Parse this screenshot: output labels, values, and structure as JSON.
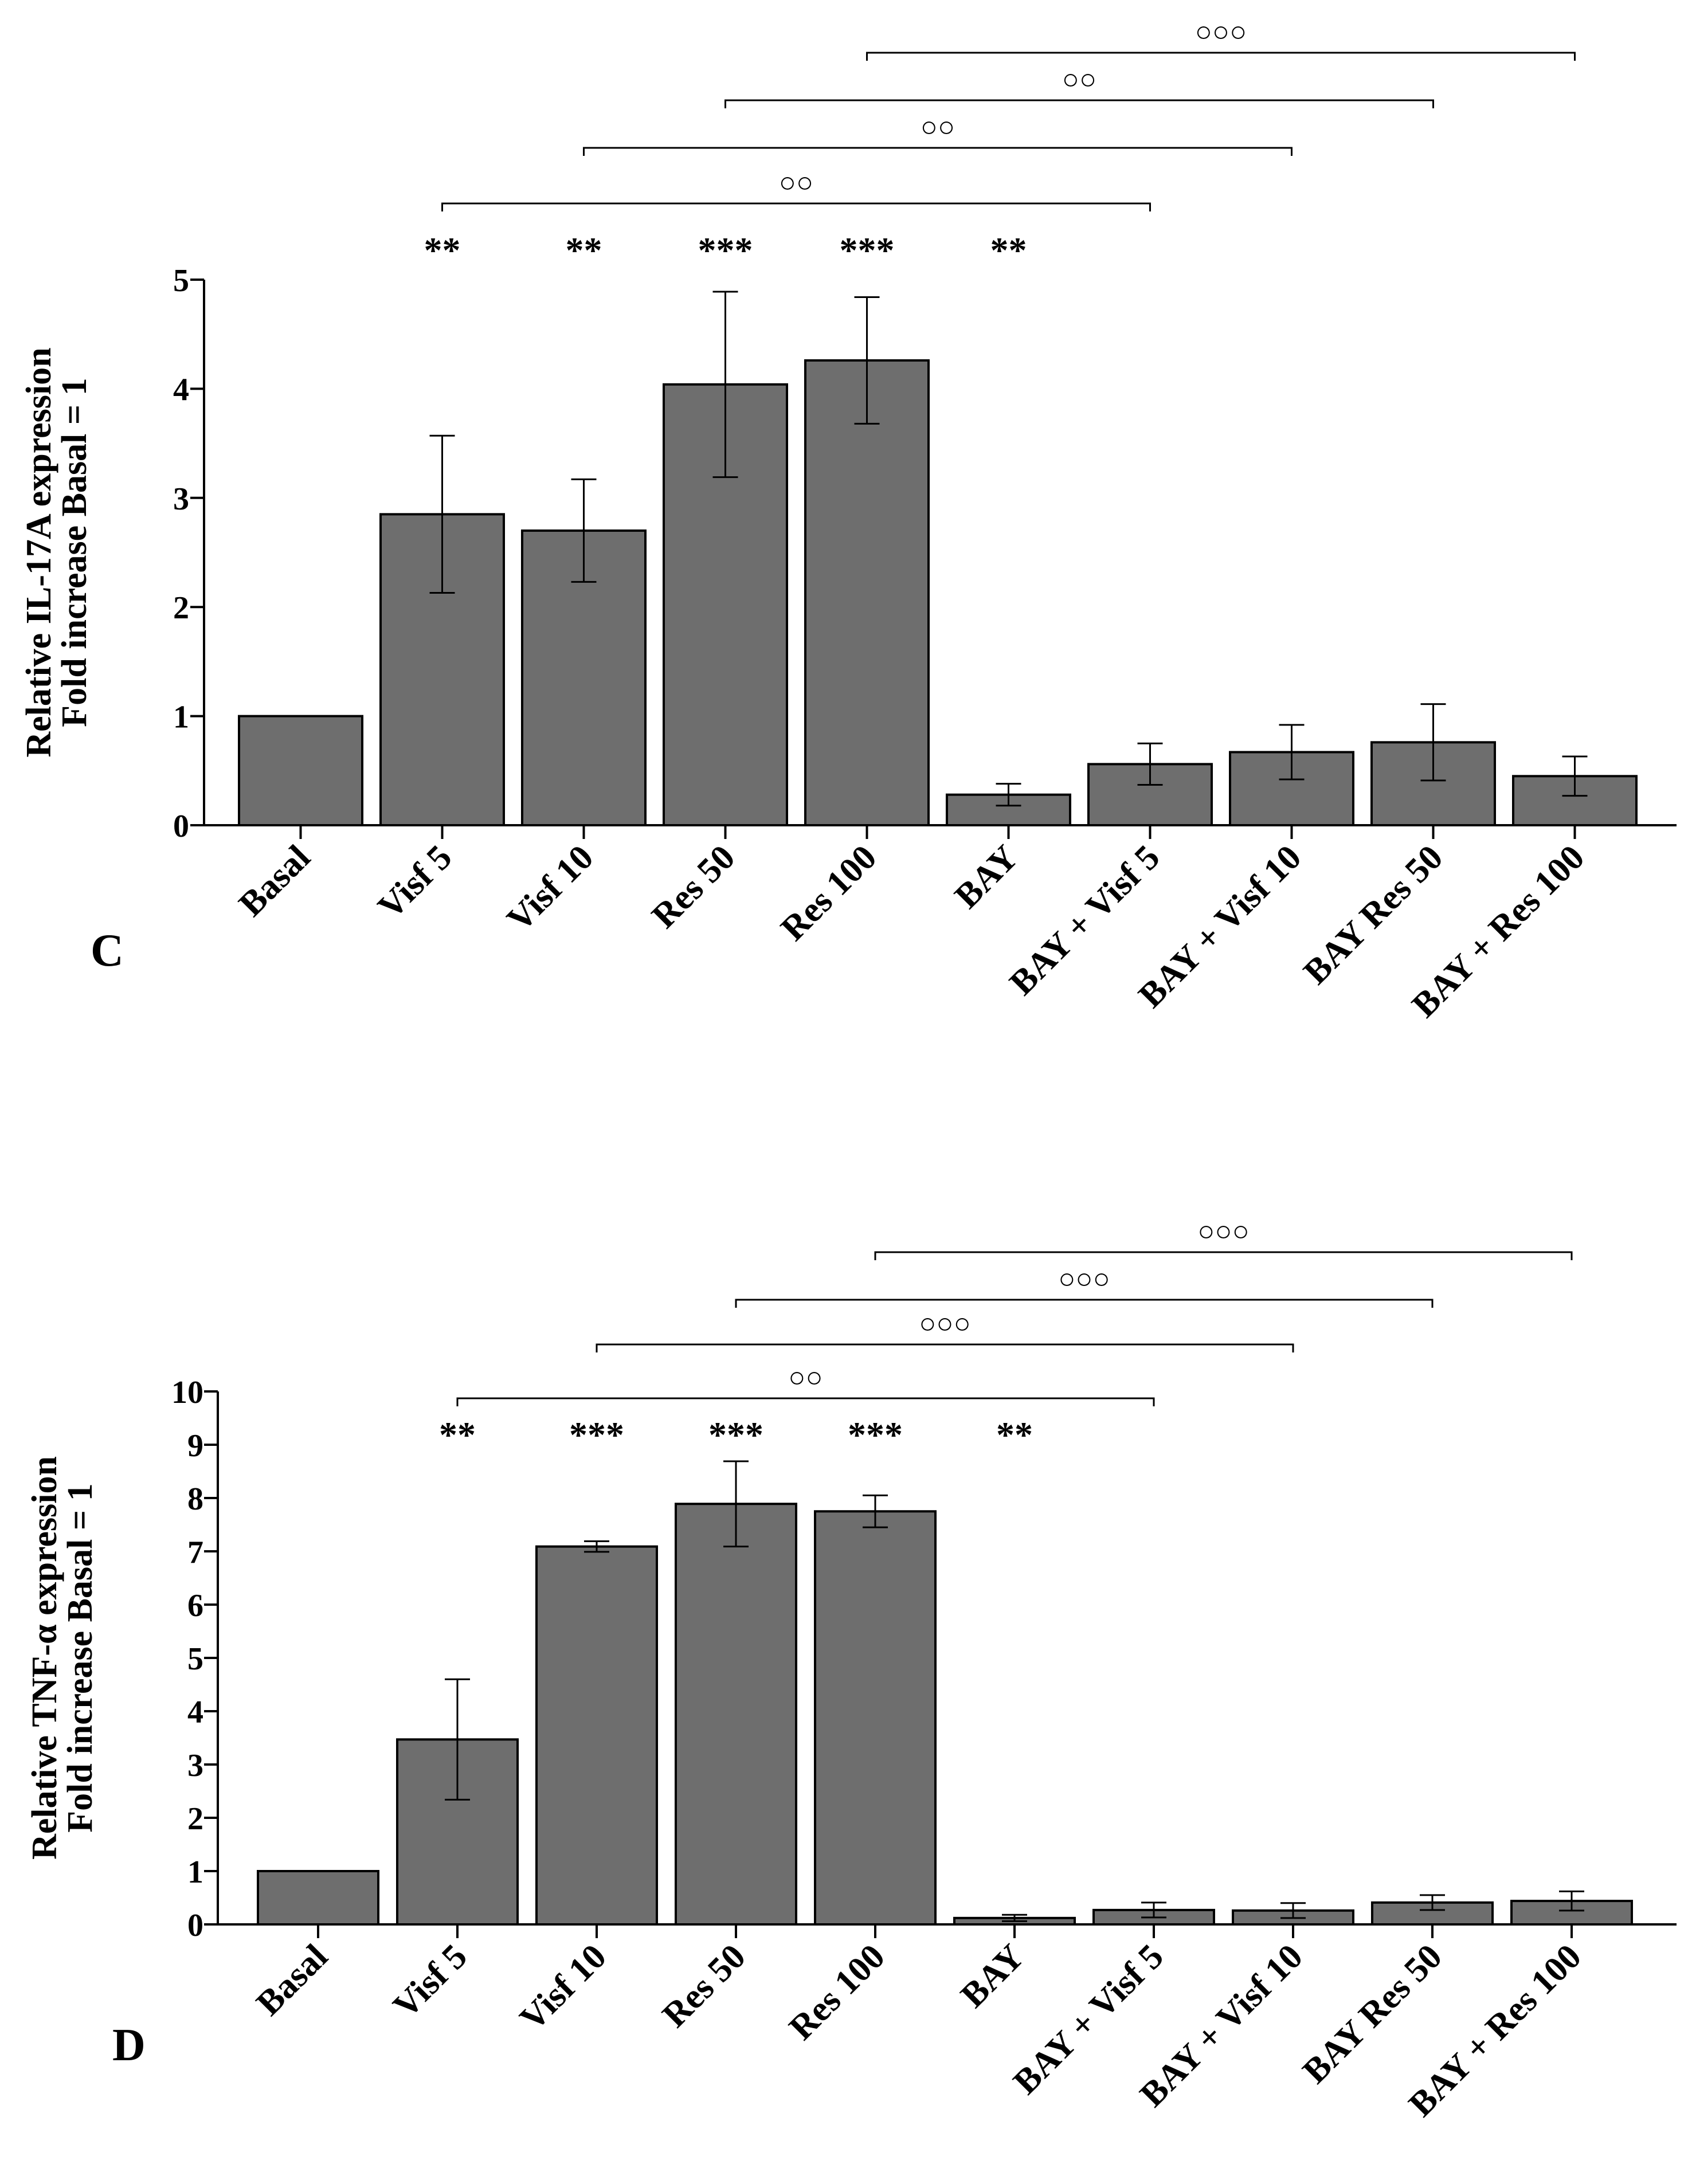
{
  "chart_data": [
    {
      "type": "bar",
      "panel": "C",
      "categories": [
        "Basal",
        "Visf 5",
        "Visf 10",
        "Res 50",
        "Res 100",
        "BAY",
        "BAY + Visf 5",
        "BAY + Visf 10",
        "BAY Res 50",
        "BAY + Res 100"
      ],
      "values": [
        1.0,
        2.85,
        2.7,
        4.04,
        4.26,
        0.28,
        0.56,
        0.67,
        0.76,
        0.45
      ],
      "errors": [
        0,
        0.72,
        0.47,
        0.85,
        0.58,
        0.1,
        0.19,
        0.25,
        0.35,
        0.18
      ],
      "ylabel_lines": [
        "Relative IL-17A expression",
        "Fold increase Basal = 1"
      ],
      "ylim": [
        0,
        5
      ],
      "yticks": [
        "0",
        "1",
        "2",
        "3",
        "4",
        "5"
      ],
      "significance": [
        "",
        "**",
        "**",
        "***",
        "***",
        "**",
        "",
        "",
        "",
        ""
      ],
      "comparisons": [
        {
          "from": "Visf 5",
          "to": "BAY + Visf 5",
          "label": "○○"
        },
        {
          "from": "Visf 10",
          "to": "BAY + Visf 10",
          "label": "○○"
        },
        {
          "from": "Res 50",
          "to": "BAY Res 50",
          "label": "○○"
        },
        {
          "from": "Res 100",
          "to": "BAY + Res 100",
          "label": "○○○"
        }
      ],
      "colors": {
        "bar": "#6e6e6e",
        "stroke": "#000000"
      }
    },
    {
      "type": "bar",
      "panel": "D",
      "categories": [
        "Basal",
        "Visf 5",
        "Visf 10",
        "Res 50",
        "Res 100",
        "BAY",
        "BAY + Visf 5",
        "BAY + Visf 10",
        "BAY Res 50",
        "BAY + Res 100"
      ],
      "values": [
        1.0,
        3.47,
        7.09,
        7.89,
        7.75,
        0.12,
        0.27,
        0.26,
        0.41,
        0.44
      ],
      "errors": [
        0,
        1.13,
        0.1,
        0.8,
        0.3,
        0.06,
        0.14,
        0.14,
        0.14,
        0.18
      ],
      "ylabel_lines": [
        "Relative TNF-α expression",
        "Fold increase Basal = 1"
      ],
      "ylim": [
        0,
        10
      ],
      "yticks": [
        "0",
        "1",
        "2",
        "3",
        "4",
        "5",
        "6",
        "7",
        "8",
        "9",
        "10"
      ],
      "significance": [
        "",
        "**",
        "***",
        "***",
        "***",
        "**",
        "",
        "",
        "",
        ""
      ],
      "comparisons": [
        {
          "from": "Visf 5",
          "to": "BAY + Visf 5",
          "label": "○○"
        },
        {
          "from": "Visf 10",
          "to": "BAY + Visf 10",
          "label": "○○○"
        },
        {
          "from": "Res 50",
          "to": "BAY Res 50",
          "label": "○○○"
        },
        {
          "from": "Res 100",
          "to": "BAY + Res 100",
          "label": "○○○"
        }
      ],
      "colors": {
        "bar": "#6e6e6e",
        "stroke": "#000000"
      }
    }
  ]
}
